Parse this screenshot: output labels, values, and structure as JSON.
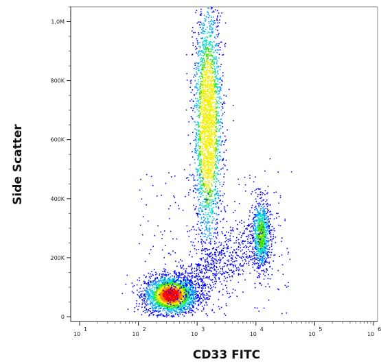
{
  "chart_data": {
    "type": "scatter",
    "style": "flow cytometry density dot plot",
    "xlabel": "CD33 FITC",
    "ylabel": "Side Scatter",
    "x_scale": "log",
    "xlim": [
      10,
      1000000
    ],
    "ylim": [
      0,
      1050000
    ],
    "x_ticks": [
      {
        "value": 10,
        "base": "10",
        "exp": "1"
      },
      {
        "value": 100,
        "base": "10",
        "exp": "2"
      },
      {
        "value": 1000,
        "base": "10",
        "exp": "3"
      },
      {
        "value": 10000,
        "base": "10",
        "exp": "4"
      },
      {
        "value": 100000,
        "base": "10",
        "exp": "5"
      },
      {
        "value": 1000000,
        "base": "10",
        "exp": "6"
      }
    ],
    "y_ticks": [
      {
        "value": 0,
        "label": "0"
      },
      {
        "value": 200000,
        "label": "200K"
      },
      {
        "value": 400000,
        "label": "400K"
      },
      {
        "value": 600000,
        "label": "600K"
      },
      {
        "value": 800000,
        "label": "800K"
      },
      {
        "value": 1000000,
        "label": "1,0M"
      }
    ],
    "populations": [
      {
        "center_x": 350,
        "center_y": 75000,
        "spread_log10_x": 0.22,
        "spread_y": 32000,
        "relative_density": "high"
      },
      {
        "center_x": 1500,
        "center_y": 650000,
        "spread_log10_x": 0.12,
        "spread_y": 200000,
        "relative_density": "high"
      },
      {
        "center_x": 12000,
        "center_y": 280000,
        "spread_log10_x": 0.08,
        "spread_y": 60000,
        "relative_density": "medium"
      }
    ],
    "density_colors": [
      "#0000ff",
      "#00a0ff",
      "#00e0c0",
      "#40e000",
      "#f0f000",
      "#ff8000",
      "#ff0000"
    ],
    "frame_color": "#888888"
  }
}
